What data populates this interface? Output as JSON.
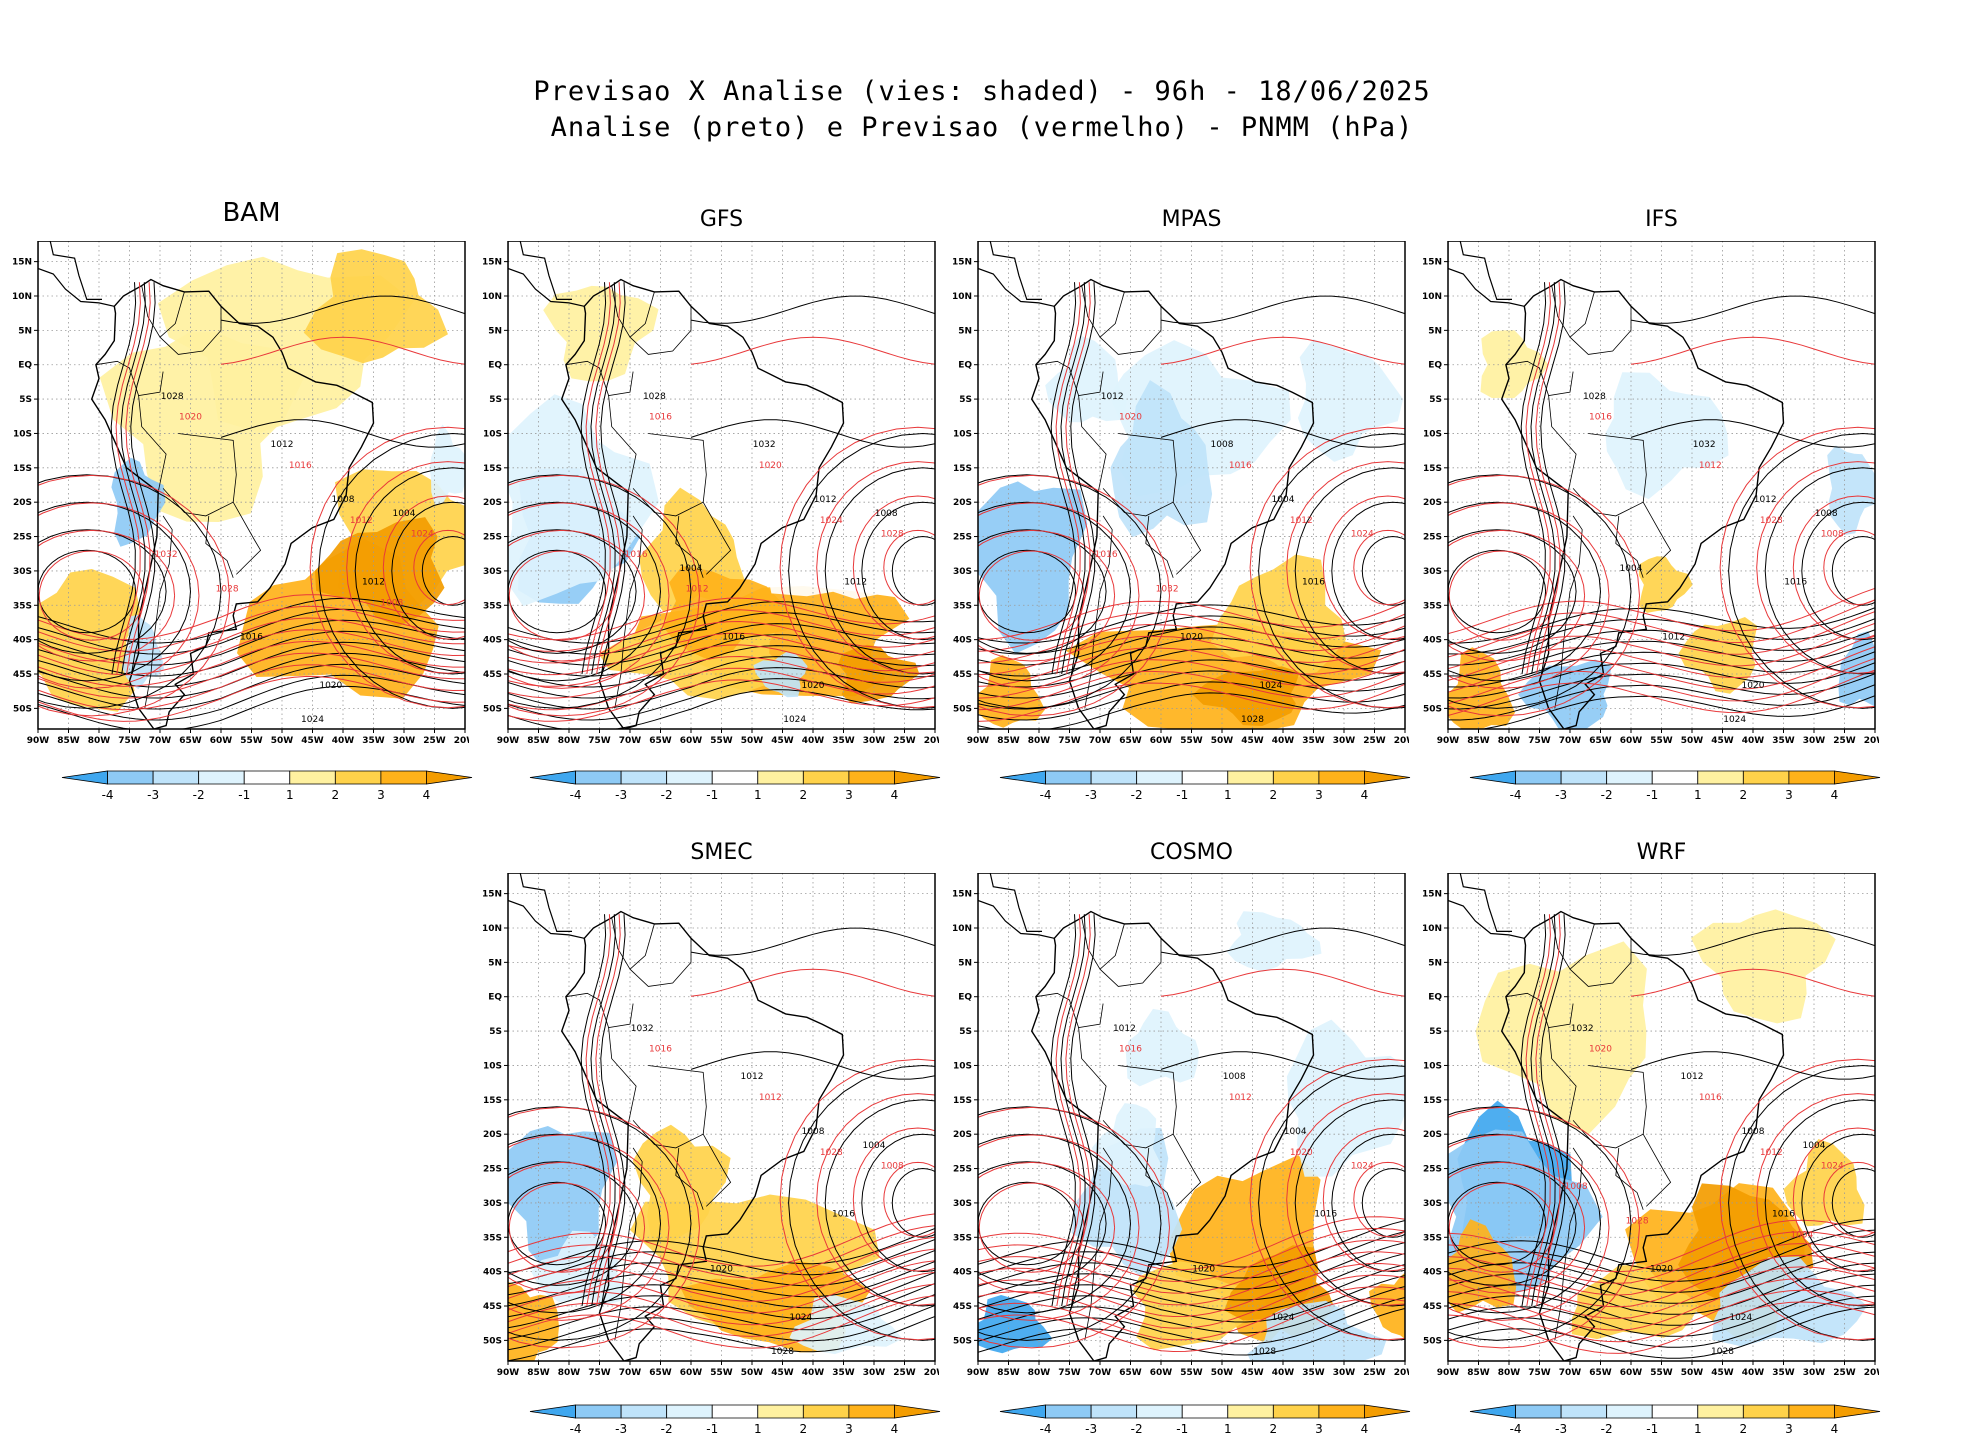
{
  "title_line1": "Previsao X Analise (vies: shaded) - 96h - 18/06/2025",
  "title_line2": "Analise (preto) e Previsao (vermelho) - PNMM (hPa)",
  "lat_labels": [
    "15N",
    "10N",
    "5N",
    "EQ",
    "5S",
    "10S",
    "15S",
    "20S",
    "25S",
    "30S",
    "35S",
    "40S",
    "45S",
    "50S"
  ],
  "lon_labels": [
    "90W",
    "85W",
    "80W",
    "75W",
    "70W",
    "65W",
    "60W",
    "55W",
    "50W",
    "45W",
    "40W",
    "35W",
    "30W",
    "25W",
    "20W"
  ],
  "colorbar": {
    "labels": [
      "-4",
      "-3",
      "-2",
      "-1",
      "1",
      "2",
      "3",
      "4"
    ],
    "colors": [
      "#3fa7ef",
      "#8ecaf5",
      "#bfe3fa",
      "#def3fd",
      "#ffffff",
      "#fff1a0",
      "#ffd24a",
      "#ffb21a",
      "#f39c00"
    ]
  },
  "contour_colors": {
    "analysis": "#000000",
    "forecast": "#e8383a"
  },
  "chart_data": [
    {
      "type": "heatmap",
      "model": "BAM",
      "variable": "PNMM bias (hPa)",
      "analysis_labels": [
        "1012",
        "1016",
        "1020",
        "1024",
        "1028",
        "1012",
        "1008",
        "1004"
      ],
      "forecast_labels": [
        "1020",
        "1016",
        "1012",
        "1024",
        "1028",
        "1032",
        "1008"
      ]
    },
    {
      "type": "heatmap",
      "model": "GFS",
      "variable": "PNMM bias (hPa)",
      "analysis_labels": [
        "1012",
        "1016",
        "1020",
        "1024",
        "1028",
        "1032",
        "1012",
        "1008",
        "1004"
      ],
      "forecast_labels": [
        "1016",
        "1020",
        "1024",
        "1028",
        "1012",
        "1016"
      ]
    },
    {
      "type": "heatmap",
      "model": "MPAS",
      "variable": "PNMM bias (hPa)",
      "analysis_labels": [
        "1016",
        "1020",
        "1024",
        "1028",
        "1012",
        "1008",
        "1004"
      ],
      "forecast_labels": [
        "1020",
        "1016",
        "1012",
        "1024",
        "1032",
        "1016"
      ]
    },
    {
      "type": "heatmap",
      "model": "IFS",
      "variable": "PNMM bias (hPa)",
      "analysis_labels": [
        "1016",
        "1012",
        "1020",
        "1024",
        "1028",
        "1032",
        "1012",
        "1008",
        "1004"
      ],
      "forecast_labels": [
        "1016",
        "1012",
        "1028",
        "1008"
      ]
    },
    {
      "type": "heatmap",
      "model": "SMEC",
      "variable": "PNMM bias (hPa)",
      "analysis_labels": [
        "1016",
        "1020",
        "1024",
        "1028",
        "1032",
        "1012",
        "1008",
        "1004"
      ],
      "forecast_labels": [
        "1016",
        "1012",
        "1028",
        "1008"
      ]
    },
    {
      "type": "heatmap",
      "model": "COSMO",
      "variable": "PNMM bias (hPa)",
      "analysis_labels": [
        "1016",
        "1020",
        "1024",
        "1028",
        "1012",
        "1008",
        "1004"
      ],
      "forecast_labels": [
        "1016",
        "1012",
        "1020",
        "1024"
      ]
    },
    {
      "type": "heatmap",
      "model": "WRF",
      "variable": "PNMM bias (hPa)",
      "analysis_labels": [
        "1016",
        "1020",
        "1024",
        "1028",
        "1032",
        "1012",
        "1008",
        "1004"
      ],
      "forecast_labels": [
        "1020",
        "1016",
        "1012",
        "1024",
        "1028",
        "1008",
        "1004"
      ]
    }
  ]
}
